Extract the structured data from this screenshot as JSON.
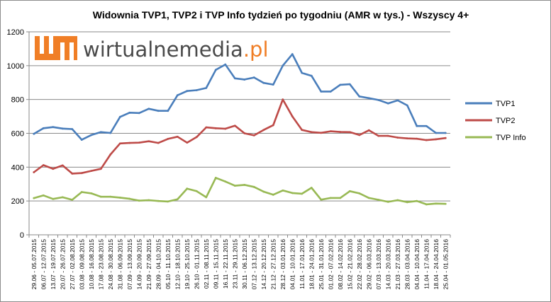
{
  "chart_data": {
    "type": "line",
    "title": "Widownia TVP1, TVP2 i TVP Info tydzień po tygodniu (AMR w tys.) - Wszyscy 4+",
    "xlabel": "",
    "ylabel": "",
    "ylim": [
      0,
      1200
    ],
    "yticks": [
      0,
      200,
      400,
      600,
      800,
      1000,
      1200
    ],
    "grid": true,
    "legend_position": "right",
    "categories": [
      "29.06 - 05.07.2015",
      "06.07 - 12.07.2015",
      "13.07 - 19.07.2015",
      "20.07 - 26.07.2015",
      "27.07 - 02.08.2015",
      "03.08 - 09.08.2015",
      "10.08 - 16.08.2015",
      "17.08 - 23.08.2015",
      "24.08 - 30.08.2015",
      "31.08 - 06.09.2015",
      "07.09 - 13.09.2015",
      "14.09 - 20.09.2015",
      "21.09 - 27.09.2015",
      "28.09 - 04.10.2015",
      "05.10 - 11.10.2015",
      "12.10 - 18.10.2015",
      "19.10 - 25.10.2015",
      "26.10 - 01.11.2015",
      "02.11 - 08.11.2015",
      "09.11 - 15.11.2015",
      "16.11 - 22.11.2015",
      "23.11 - 29.11.2015",
      "30.11 - 06.12.2015",
      "07.12 - 13.12.2015",
      "14.12 - 20.12.2015",
      "21.12 - 27.12.2015",
      "28.12 - 03.01.2016",
      "04.01 - 10.01.2016",
      "11.01 - 17.01.2016",
      "18.01 - 24.01.2016",
      "25.01 - 31.01.2016",
      "01.02 - 07.02.2016",
      "08.02 - 14.02.2016",
      "15.02 - 21.02.2016",
      "22.02 - 28.02.2016",
      "29.02 - 06.03.2016",
      "07.03 - 13.03.2016",
      "14.03 - 20.03.2016",
      "21.03 - 27.03.2016",
      "28.03 - 03.04.2016",
      "04.04 - 10.04.2016",
      "11.04 - 17.04.2016",
      "18.04 - 24.04.2016",
      "25.04 - 01.05.2016"
    ],
    "series": [
      {
        "name": "TVP1",
        "color": "#4a7ebb",
        "values": [
          597,
          630,
          637,
          628,
          625,
          562,
          590,
          607,
          602,
          697,
          722,
          720,
          745,
          733,
          733,
          825,
          850,
          855,
          868,
          975,
          1007,
          925,
          918,
          930,
          898,
          888,
          1000,
          1068,
          957,
          940,
          847,
          847,
          887,
          890,
          818,
          808,
          797,
          777,
          795,
          765,
          643,
          643,
          602,
          602
        ]
      },
      {
        "name": "TVP2",
        "color": "#be4b48",
        "values": [
          370,
          412,
          390,
          410,
          362,
          365,
          378,
          390,
          475,
          540,
          543,
          545,
          553,
          543,
          567,
          580,
          545,
          578,
          635,
          630,
          627,
          645,
          600,
          588,
          620,
          648,
          800,
          700,
          620,
          607,
          603,
          612,
          608,
          607,
          590,
          618,
          585,
          585,
          575,
          570,
          568,
          560,
          565,
          572
        ]
      },
      {
        "name": "TVP Info",
        "color": "#98b954",
        "values": [
          217,
          233,
          212,
          222,
          207,
          253,
          245,
          225,
          225,
          220,
          213,
          202,
          205,
          200,
          197,
          210,
          273,
          258,
          222,
          337,
          315,
          290,
          295,
          283,
          255,
          237,
          262,
          247,
          243,
          278,
          208,
          218,
          218,
          258,
          245,
          218,
          207,
          195,
          205,
          193,
          200,
          180,
          185,
          183
        ]
      }
    ]
  },
  "logo": {
    "icon_name": "wirtualnemedia-logo-icon",
    "name_part": "wirtualnemedia",
    "tld_part": ".pl",
    "accent_color": "#f07e26",
    "text_color": "#4a4a4a"
  }
}
